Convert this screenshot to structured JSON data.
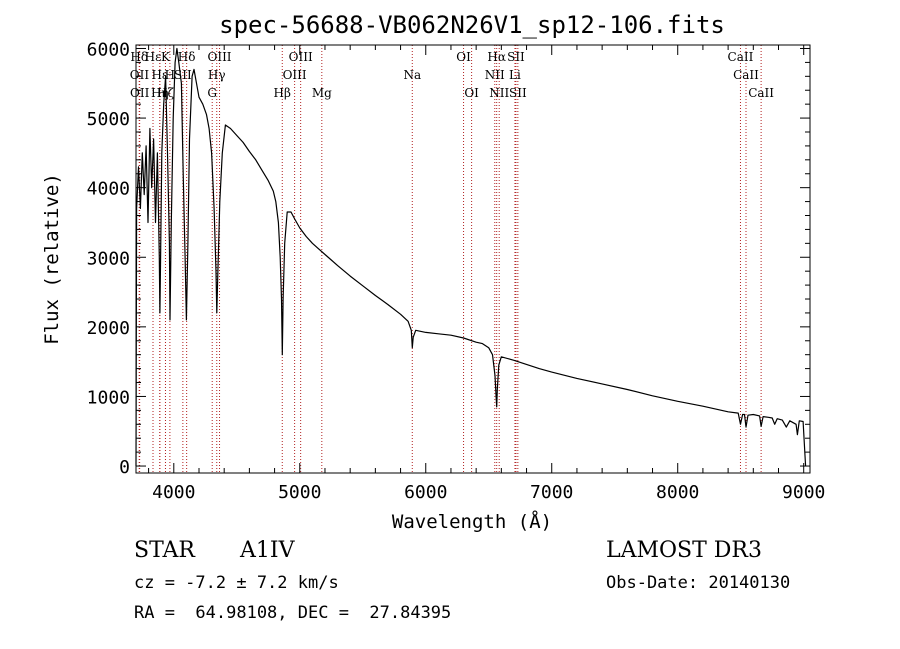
{
  "chart_data": {
    "type": "line",
    "title": "spec-56688-VB062N26V1_sp12-106.fits",
    "xlabel": "Wavelength (Å)",
    "ylabel": "Flux (relative)",
    "xlim": [
      3700,
      9050
    ],
    "ylim": [
      -100,
      6050
    ],
    "xticks": [
      4000,
      5000,
      6000,
      7000,
      8000,
      9000
    ],
    "yticks": [
      0,
      1000,
      2000,
      3000,
      4000,
      5000,
      6000
    ],
    "xtick_labels": [
      "4000",
      "5000",
      "6000",
      "7000",
      "8000",
      "9000"
    ],
    "ytick_labels": [
      "0",
      "1000",
      "2000",
      "3000",
      "4000",
      "5000",
      "6000"
    ],
    "grid": false,
    "series": [
      {
        "name": "flux",
        "points": [
          [
            3700,
            0
          ],
          [
            3705,
            3700
          ],
          [
            3720,
            4300
          ],
          [
            3735,
            3700
          ],
          [
            3750,
            4500
          ],
          [
            3765,
            3900
          ],
          [
            3780,
            4600
          ],
          [
            3795,
            3500
          ],
          [
            3810,
            4850
          ],
          [
            3825,
            4000
          ],
          [
            3840,
            4700
          ],
          [
            3855,
            3500
          ],
          [
            3870,
            4500
          ],
          [
            3885,
            3000
          ],
          [
            3890,
            2200
          ],
          [
            3895,
            3000
          ],
          [
            3905,
            4500
          ],
          [
            3920,
            5200
          ],
          [
            3935,
            5600
          ],
          [
            3950,
            4500
          ],
          [
            3965,
            3200
          ],
          [
            3970,
            2100
          ],
          [
            3980,
            3500
          ],
          [
            3995,
            5000
          ],
          [
            4010,
            5800
          ],
          [
            4025,
            6000
          ],
          [
            4040,
            5800
          ],
          [
            4060,
            5500
          ],
          [
            4075,
            4200
          ],
          [
            4090,
            3000
          ],
          [
            4100,
            2100
          ],
          [
            4112,
            3200
          ],
          [
            4125,
            4700
          ],
          [
            4145,
            5600
          ],
          [
            4160,
            5700
          ],
          [
            4180,
            5500
          ],
          [
            4200,
            5300
          ],
          [
            4230,
            5200
          ],
          [
            4260,
            5050
          ],
          [
            4280,
            4850
          ],
          [
            4300,
            4500
          ],
          [
            4320,
            3700
          ],
          [
            4335,
            2800
          ],
          [
            4341,
            2200
          ],
          [
            4350,
            2800
          ],
          [
            4365,
            3800
          ],
          [
            4385,
            4500
          ],
          [
            4410,
            4900
          ],
          [
            4450,
            4850
          ],
          [
            4500,
            4750
          ],
          [
            4550,
            4650
          ],
          [
            4600,
            4520
          ],
          [
            4650,
            4400
          ],
          [
            4700,
            4250
          ],
          [
            4750,
            4100
          ],
          [
            4790,
            3950
          ],
          [
            4810,
            3800
          ],
          [
            4830,
            3500
          ],
          [
            4845,
            3000
          ],
          [
            4855,
            2400
          ],
          [
            4861,
            1600
          ],
          [
            4868,
            2400
          ],
          [
            4880,
            3200
          ],
          [
            4900,
            3650
          ],
          [
            4930,
            3650
          ],
          [
            4960,
            3550
          ],
          [
            5000,
            3420
          ],
          [
            5050,
            3300
          ],
          [
            5100,
            3200
          ],
          [
            5150,
            3120
          ],
          [
            5200,
            3040
          ],
          [
            5250,
            2960
          ],
          [
            5300,
            2880
          ],
          [
            5400,
            2730
          ],
          [
            5500,
            2590
          ],
          [
            5600,
            2450
          ],
          [
            5700,
            2320
          ],
          [
            5800,
            2180
          ],
          [
            5860,
            2080
          ],
          [
            5885,
            1950
          ],
          [
            5893,
            1700
          ],
          [
            5900,
            1850
          ],
          [
            5920,
            1950
          ],
          [
            6000,
            1920
          ],
          [
            6100,
            1900
          ],
          [
            6200,
            1880
          ],
          [
            6300,
            1840
          ],
          [
            6400,
            1780
          ],
          [
            6450,
            1760
          ],
          [
            6500,
            1700
          ],
          [
            6530,
            1600
          ],
          [
            6550,
            1300
          ],
          [
            6558,
            1000
          ],
          [
            6563,
            850
          ],
          [
            6568,
            1100
          ],
          [
            6580,
            1450
          ],
          [
            6600,
            1570
          ],
          [
            6700,
            1520
          ],
          [
            6800,
            1460
          ],
          [
            6900,
            1400
          ],
          [
            7000,
            1350
          ],
          [
            7200,
            1260
          ],
          [
            7400,
            1180
          ],
          [
            7600,
            1100
          ],
          [
            7800,
            1010
          ],
          [
            8000,
            930
          ],
          [
            8200,
            860
          ],
          [
            8400,
            780
          ],
          [
            8480,
            760
          ],
          [
            8498,
            600
          ],
          [
            8515,
            740
          ],
          [
            8530,
            740
          ],
          [
            8542,
            560
          ],
          [
            8558,
            730
          ],
          [
            8600,
            740
          ],
          [
            8650,
            720
          ],
          [
            8662,
            570
          ],
          [
            8678,
            710
          ],
          [
            8720,
            700
          ],
          [
            8750,
            690
          ],
          [
            8770,
            600
          ],
          [
            8790,
            680
          ],
          [
            8830,
            660
          ],
          [
            8862,
            560
          ],
          [
            8890,
            650
          ],
          [
            8940,
            600
          ],
          [
            8950,
            450
          ],
          [
            8965,
            650
          ],
          [
            8995,
            640
          ],
          [
            9010,
            150
          ],
          [
            9015,
            0
          ]
        ]
      }
    ],
    "lines": [
      {
        "label": "Hδ",
        "x": 3726,
        "row": 1
      },
      {
        "label": "OII",
        "x": 3727,
        "row": 2
      },
      {
        "label": "OII",
        "x": 3729,
        "row": 3
      },
      {
        "label": "Hε",
        "x": 3835,
        "row": 1
      },
      {
        "label": "Hη",
        "x": 3889,
        "row": 3
      },
      {
        "label": "Hε",
        "x": 3889,
        "row": 2
      },
      {
        "label": "K",
        "x": 3934,
        "row": 1
      },
      {
        "label": "Hζ",
        "x": 3934,
        "row": 3
      },
      {
        "label": "H",
        "x": 3969,
        "row": 2
      },
      {
        "label": "Hδ",
        "x": 4102,
        "row": 1
      },
      {
        "label": "SII",
        "x": 4072,
        "row": 2
      },
      {
        "label": "OIII",
        "x": 4363,
        "row": 1
      },
      {
        "label": "Hγ",
        "x": 4341,
        "row": 2
      },
      {
        "label": "G",
        "x": 4305,
        "row": 3
      },
      {
        "label": "OIII",
        "x": 5007,
        "row": 1
      },
      {
        "label": "OIII",
        "x": 4959,
        "row": 2
      },
      {
        "label": "Hβ",
        "x": 4861,
        "row": 3
      },
      {
        "label": "Mg",
        "x": 5175,
        "row": 3
      },
      {
        "label": "Na",
        "x": 5893,
        "row": 2
      },
      {
        "label": "OI",
        "x": 6300,
        "row": 1
      },
      {
        "label": "OI",
        "x": 6364,
        "row": 3
      },
      {
        "label": "Hα",
        "x": 6563,
        "row": 1
      },
      {
        "label": "NII",
        "x": 6548,
        "row": 2
      },
      {
        "label": "NII",
        "x": 6583,
        "row": 3
      },
      {
        "label": "SII",
        "x": 6716,
        "row": 1
      },
      {
        "label": "Li",
        "x": 6708,
        "row": 2
      },
      {
        "label": "SII",
        "x": 6731,
        "row": 3
      },
      {
        "label": "CaII",
        "x": 8498,
        "row": 1
      },
      {
        "label": "CaII",
        "x": 8542,
        "row": 2
      },
      {
        "label": "CaII",
        "x": 8662,
        "row": 3
      }
    ]
  },
  "info": {
    "object_class": "STAR",
    "subclass": "A1IV",
    "survey": "LAMOST DR3",
    "redshift": "cz = -7.2 ± 7.2 km/s",
    "obs_date": "Obs-Date: 20140130",
    "coords": "RA =  64.98108, DEC =  27.84395"
  },
  "colors": {
    "line_marker": "#b22222",
    "spectrum": "#000000",
    "axes": "#000000"
  }
}
